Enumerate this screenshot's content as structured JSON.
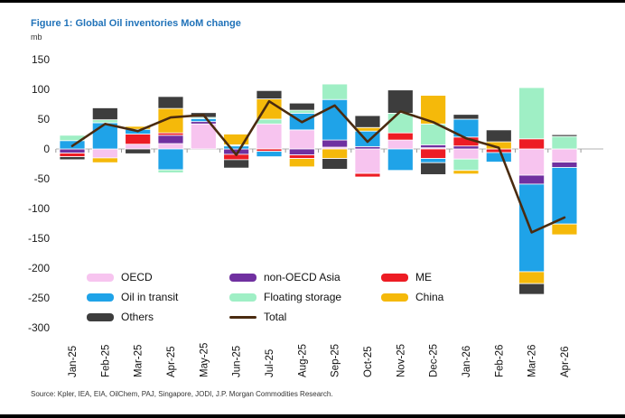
{
  "figure": {
    "title": "Figure 1: Global Oil inventories MoM change",
    "unit_label": "mb",
    "source_note": "Source: Kpler, IEA, EIA, OilChem, PAJ, Singapore, JODI, J.P. Morgan Commodities Research."
  },
  "colors": {
    "title_blue": "#2173B9",
    "zero_line": "#D8D8D8",
    "axis_text": "#1A1A1A",
    "oecd_pink": "#F7C4EF",
    "non_oecd_purple": "#7030A0",
    "me_red": "#ED1C24",
    "transit_cyan": "#1FA3E8",
    "floating_mint": "#9FEFC5",
    "china_gold": "#F5B90A",
    "others_dark": "#3D3D3D",
    "total_brown": "#4A2B10"
  },
  "legend": {
    "items": [
      {
        "label": "OECD",
        "color": "#F7C4EF",
        "type": "swatch"
      },
      {
        "label": "non-OECD Asia",
        "color": "#7030A0",
        "type": "swatch"
      },
      {
        "label": "ME",
        "color": "#ED1C24",
        "type": "swatch"
      },
      {
        "label": "Oil in transit",
        "color": "#1FA3E8",
        "type": "swatch"
      },
      {
        "label": "Floating storage",
        "color": "#9FEFC5",
        "type": "swatch"
      },
      {
        "label": "China",
        "color": "#F5B90A",
        "type": "swatch"
      },
      {
        "label": "Others",
        "color": "#3D3D3D",
        "type": "swatch"
      },
      {
        "label": "Total",
        "color": "#4A2B10",
        "type": "line"
      }
    ]
  },
  "chart_data": {
    "type": "bar",
    "stacked": true,
    "title": "Figure 1: Global Oil inventories MoM change",
    "ylabel": "mb",
    "xlabel": "",
    "ylim": [
      -300,
      150
    ],
    "ytick_step": 50,
    "grid": false,
    "legend_position": "inside-bottom-left",
    "categories": [
      "Jan-25",
      "Feb-25",
      "Mar-25",
      "Apr-25",
      "May-25",
      "Jun-25",
      "Jul-25",
      "Aug-25",
      "Sep-25",
      "Oct-25",
      "Nov-25",
      "Dec-25",
      "Jan-26",
      "Feb-26",
      "Mar-26",
      "Apr-26"
    ],
    "series": [
      {
        "name": "OECD",
        "color": "#F7C4EF",
        "values": [
          0,
          -15,
          8,
          9,
          42,
          0,
          42,
          32,
          3,
          -41,
          15,
          2,
          -17,
          0,
          -44,
          -22
        ]
      },
      {
        "name": "non-OECD Asia",
        "color": "#7030A0",
        "values": [
          -7,
          0,
          0,
          14,
          4,
          -9,
          0,
          -10,
          12,
          4,
          0,
          5,
          5,
          0,
          -15,
          -9
        ]
      },
      {
        "name": "ME",
        "color": "#ED1C24",
        "values": [
          -6,
          0,
          17,
          4,
          0,
          -9,
          -4,
          -6,
          0,
          -6,
          12,
          -16,
          15,
          -6,
          17,
          0
        ]
      },
      {
        "name": "Oil in transit",
        "color": "#1FA3E8",
        "values": [
          14,
          44,
          8,
          -35,
          5,
          5,
          -9,
          28,
          68,
          26,
          -36,
          -7,
          30,
          -16,
          -147,
          -95
        ]
      },
      {
        "name": "Floating storage",
        "color": "#9FEFC5",
        "values": [
          9,
          5,
          0,
          -5,
          2,
          2,
          8,
          5,
          26,
          0,
          33,
          35,
          -19,
          0,
          86,
          21
        ]
      },
      {
        "name": "China",
        "color": "#F5B90A",
        "values": [
          0,
          -8,
          5,
          41,
          0,
          18,
          34,
          -14,
          -16,
          6,
          0,
          48,
          -6,
          12,
          -20,
          -18
        ]
      },
      {
        "name": "Others",
        "color": "#3D3D3D",
        "values": [
          -5,
          20,
          -8,
          20,
          8,
          -14,
          14,
          12,
          -18,
          20,
          39,
          -20,
          8,
          20,
          -18,
          3
        ]
      }
    ],
    "line_series": {
      "name": "Total",
      "color": "#4A2B10",
      "values": [
        5,
        42,
        30,
        53,
        57,
        -10,
        80,
        45,
        73,
        12,
        63,
        45,
        18,
        2,
        -140,
        -115
      ]
    }
  }
}
